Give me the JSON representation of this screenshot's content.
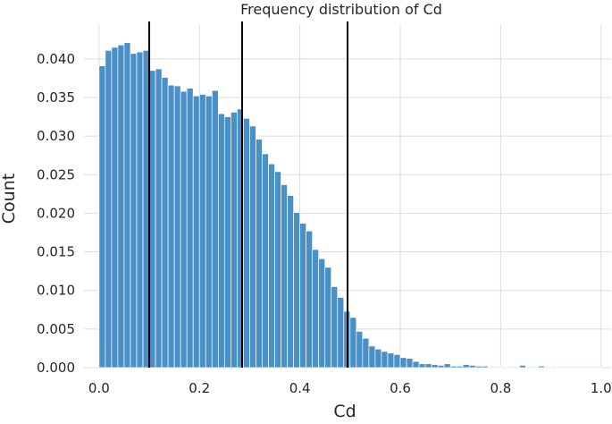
{
  "chart_data": {
    "type": "bar",
    "title": "Frequency distribution of Cd",
    "xlabel": "Cd",
    "ylabel": "Count",
    "xlim": [
      -0.03,
      1.02
    ],
    "ylim": [
      0,
      0.0445
    ],
    "xticks": [
      "0.0",
      "0.2",
      "0.4",
      "0.6",
      "0.8",
      "1.0"
    ],
    "yticks": [
      "0.000",
      "0.005",
      "0.010",
      "0.015",
      "0.020",
      "0.025",
      "0.030",
      "0.035",
      "0.040"
    ],
    "grid": true,
    "bar_color": "#4a90c8",
    "bin_width": 0.0125,
    "bins_start": [
      0.0,
      0.0125,
      0.025,
      0.0375,
      0.05,
      0.0625,
      0.075,
      0.0875,
      0.1,
      0.1125,
      0.125,
      0.1375,
      0.15,
      0.1625,
      0.175,
      0.1875,
      0.2,
      0.2125,
      0.225,
      0.2375,
      0.25,
      0.2625,
      0.275,
      0.2875,
      0.3,
      0.3125,
      0.325,
      0.3375,
      0.35,
      0.3625,
      0.375,
      0.3875,
      0.4,
      0.4125,
      0.425,
      0.4375,
      0.45,
      0.4625,
      0.475,
      0.4875,
      0.5,
      0.5125,
      0.525,
      0.5375,
      0.55,
      0.5625,
      0.575,
      0.5875,
      0.6,
      0.6125,
      0.625,
      0.6375,
      0.65,
      0.6625,
      0.675,
      0.6875,
      0.7,
      0.7125,
      0.725,
      0.7375,
      0.75,
      0.7625,
      0.775,
      0.7875,
      0.8,
      0.8125,
      0.825,
      0.8375,
      0.85,
      0.8625,
      0.875,
      0.8875,
      0.9,
      0.9125,
      0.925,
      0.9375,
      0.95,
      0.9625,
      0.975,
      0.9875
    ],
    "values": [
      0.0391,
      0.0411,
      0.0415,
      0.0418,
      0.0421,
      0.0407,
      0.0409,
      0.0411,
      0.0385,
      0.0387,
      0.0376,
      0.0366,
      0.0365,
      0.0358,
      0.0362,
      0.0352,
      0.0354,
      0.0352,
      0.0359,
      0.0329,
      0.0325,
      0.0331,
      0.0335,
      0.0323,
      0.0313,
      0.0296,
      0.0277,
      0.0264,
      0.0254,
      0.0237,
      0.0223,
      0.0201,
      0.0187,
      0.0177,
      0.0153,
      0.0141,
      0.013,
      0.0105,
      0.0091,
      0.0073,
      0.0065,
      0.0047,
      0.0038,
      0.0028,
      0.0024,
      0.0021,
      0.0019,
      0.0017,
      0.0013,
      0.0012,
      0.0008,
      0.0005,
      0.0005,
      0.0004,
      0.0003,
      0.0005,
      0.0002,
      0.0002,
      0.0004,
      0.0003,
      0.0002,
      0.0002,
      0.0001,
      0.0001,
      0.0001,
      0.0001,
      0.0001,
      0.0003,
      0.0001,
      0.0001,
      0.0002,
      0.0001,
      0.0001,
      0.0001,
      0.0001,
      0.0001,
      0.0001,
      0.0001,
      0.0001,
      0.0001
    ],
    "vertical_lines": [
      0.1,
      0.285,
      0.495
    ],
    "line_color": "#000000"
  }
}
